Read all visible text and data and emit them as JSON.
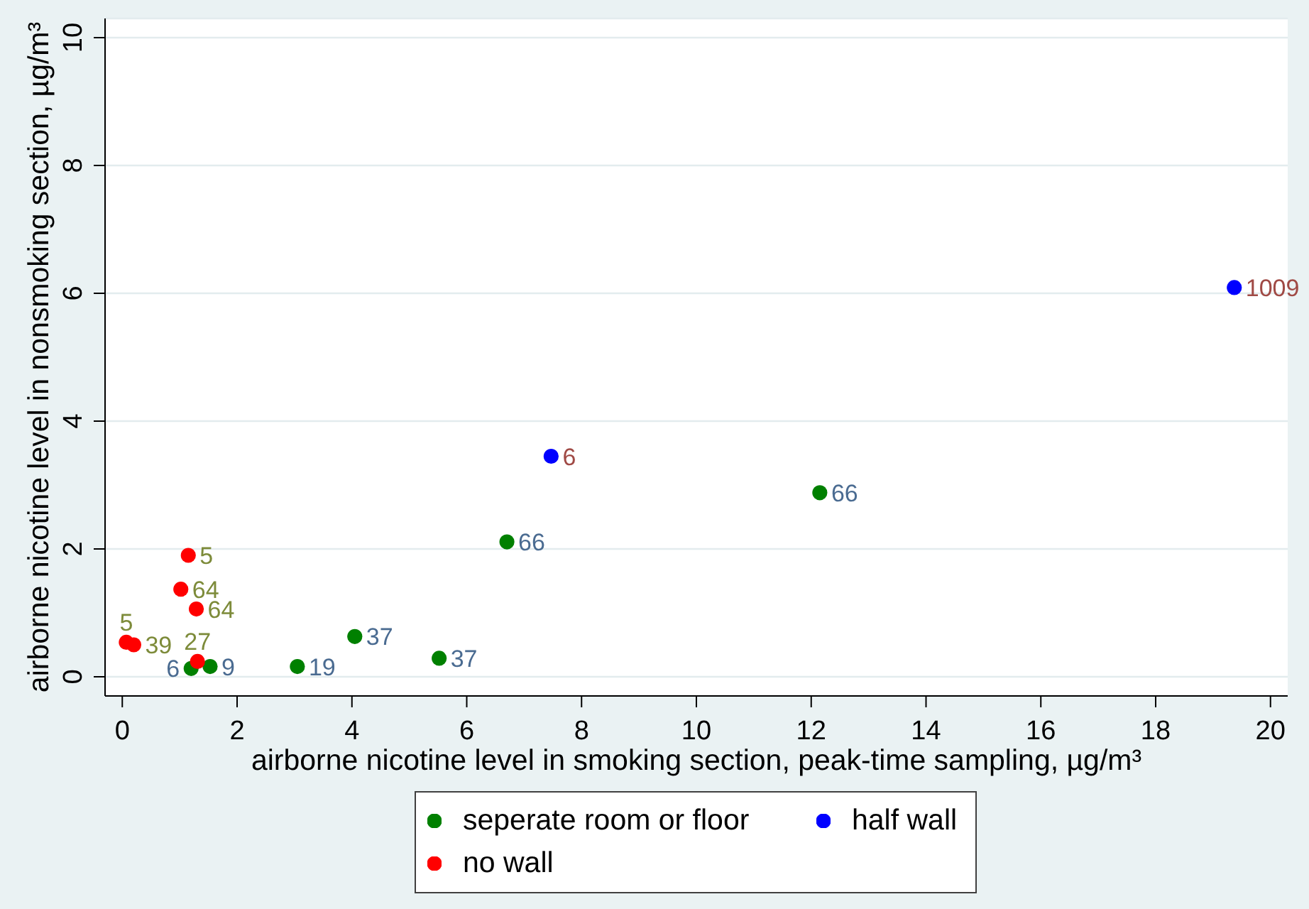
{
  "chart_data": {
    "type": "scatter",
    "xlabel": "airborne nicotine level in smoking section, peak-time sampling, µg/m³",
    "ylabel": "airborne nicotine level in nonsmoking section, µg/m³",
    "xlim": [
      -0.3,
      20.3
    ],
    "ylim": [
      -0.3,
      10.3
    ],
    "xticks": [
      0,
      2,
      4,
      6,
      8,
      10,
      12,
      14,
      16,
      18,
      20
    ],
    "yticks": [
      0,
      2,
      4,
      6,
      8,
      10
    ],
    "grid": "y",
    "legend": "bottom",
    "marker": "circle",
    "series": [
      {
        "name": "seperate room or floor",
        "color": "#008000",
        "x": [
          1.2,
          1.53,
          3.05,
          4.05,
          5.52,
          6.7,
          12.15
        ],
        "values": [
          0.13,
          0.16,
          0.16,
          0.63,
          0.29,
          2.11,
          2.88
        ]
      },
      {
        "name": "half wall",
        "color": "#0000ff",
        "x": [
          7.47,
          19.37
        ],
        "values": [
          3.45,
          6.09
        ]
      },
      {
        "name": "no wall",
        "color": "#ff0000",
        "x": [
          0.07,
          0.2,
          1.15,
          1.02,
          1.29,
          1.31
        ],
        "values": [
          0.54,
          0.5,
          1.9,
          1.37,
          1.06,
          0.24
        ]
      }
    ],
    "annotations": [
      {
        "text": "6",
        "x": 1.2,
        "y": 0.13
      },
      {
        "text": "9",
        "x": 1.53,
        "y": 0.16
      },
      {
        "text": "19",
        "x": 3.05,
        "y": 0.16
      },
      {
        "text": "37",
        "x": 4.05,
        "y": 0.63
      },
      {
        "text": "37",
        "x": 5.52,
        "y": 0.29
      },
      {
        "text": "66",
        "x": 6.7,
        "y": 2.11
      },
      {
        "text": "66",
        "x": 12.15,
        "y": 2.88
      },
      {
        "text": "6",
        "x": 7.47,
        "y": 3.45
      },
      {
        "text": "1009",
        "x": 19.37,
        "y": 6.09
      },
      {
        "text": "39",
        "x": 0.2,
        "y": 0.5
      },
      {
        "text": "5",
        "x": 0.07,
        "y": 0.54
      },
      {
        "text": "5",
        "x": 1.15,
        "y": 1.9
      },
      {
        "text": "64",
        "x": 1.02,
        "y": 1.37
      },
      {
        "text": "64",
        "x": 1.29,
        "y": 1.06
      },
      {
        "text": "27",
        "x": 1.31,
        "y": 0.24
      }
    ]
  }
}
